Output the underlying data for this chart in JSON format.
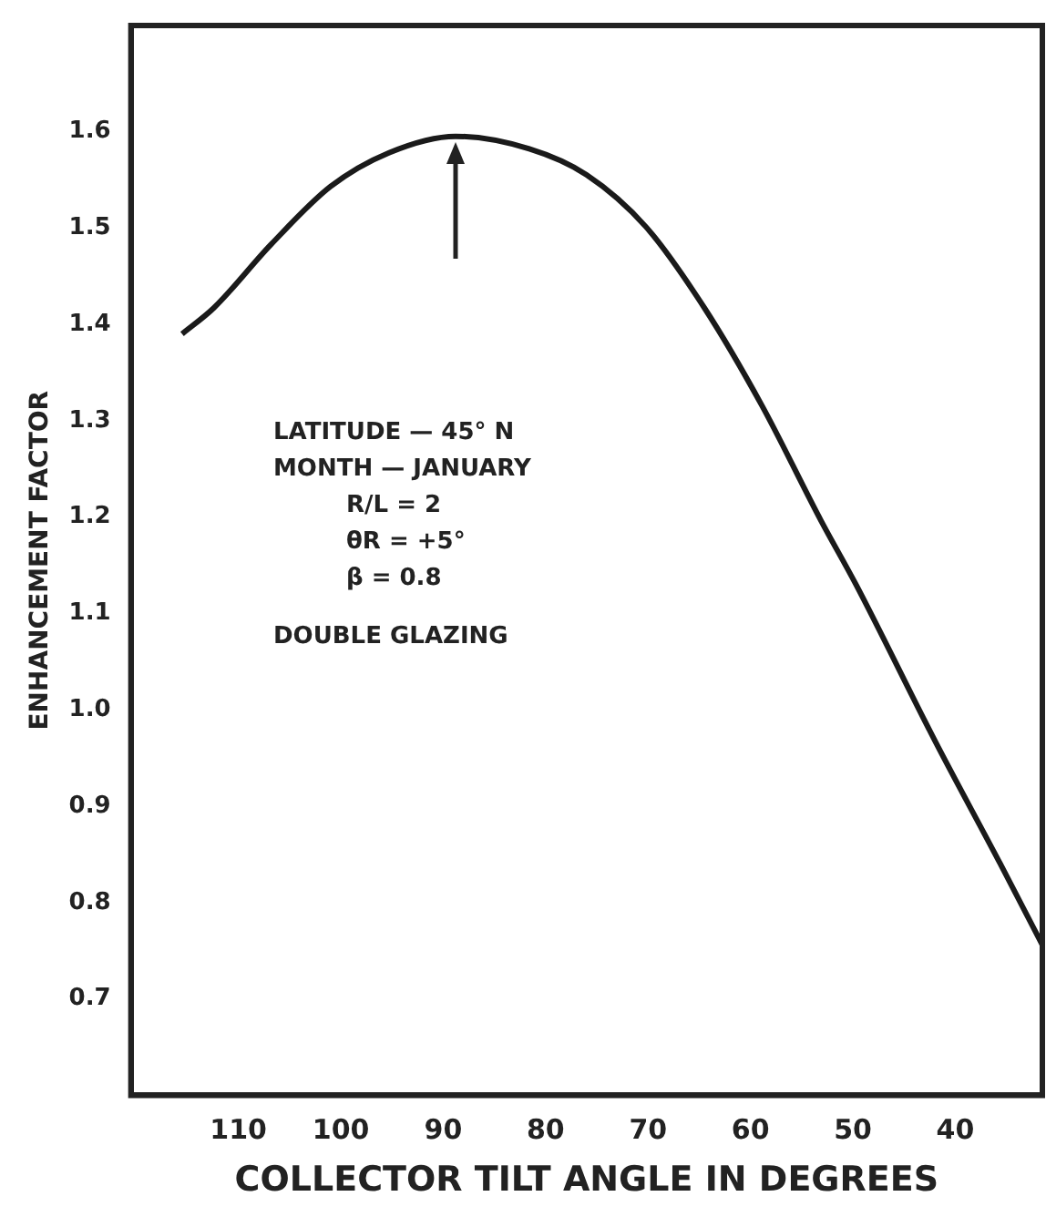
{
  "chart_data": {
    "type": "line",
    "xlabel": "COLLECTOR TILT ANGLE IN DEGREES",
    "ylabel": "ENHANCEMENT FACTOR",
    "x": [
      115.5,
      112.4,
      106.8,
      101,
      95.3,
      88.8,
      81.6,
      76,
      70.2,
      64.5,
      58.9,
      53.1,
      49.7,
      41.9,
      35.6,
      31.5
    ],
    "series": [
      {
        "color": "#1a1a1a",
        "values": [
          1.39,
          1.417,
          1.483,
          1.543,
          1.578,
          1.595,
          1.582,
          1.555,
          1.501,
          1.417,
          1.316,
          1.196,
          1.13,
          0.966,
          0.84,
          0.756
        ]
      }
    ],
    "xlim": [
      120.5,
      31.5
    ],
    "xticks": [
      110,
      100,
      90,
      80,
      70,
      60,
      50,
      40
    ],
    "ylim": [
      0.6,
      1.71
    ],
    "yticks": [
      0.7,
      0.8,
      0.9,
      {
        "value": 1,
        "label": "1.0"
      },
      1.1,
      1.2,
      1.3,
      1.4,
      1.5,
      1.6
    ],
    "annotations": [
      "LATITUDE — 45° N",
      "MONTH — JANUARY",
      "R/L = 2",
      "θR = +5°",
      "β = 0.8",
      "DOUBLE GLAZING"
    ],
    "grid": false,
    "legend": false,
    "marker": "none",
    "line_style": "solid"
  }
}
